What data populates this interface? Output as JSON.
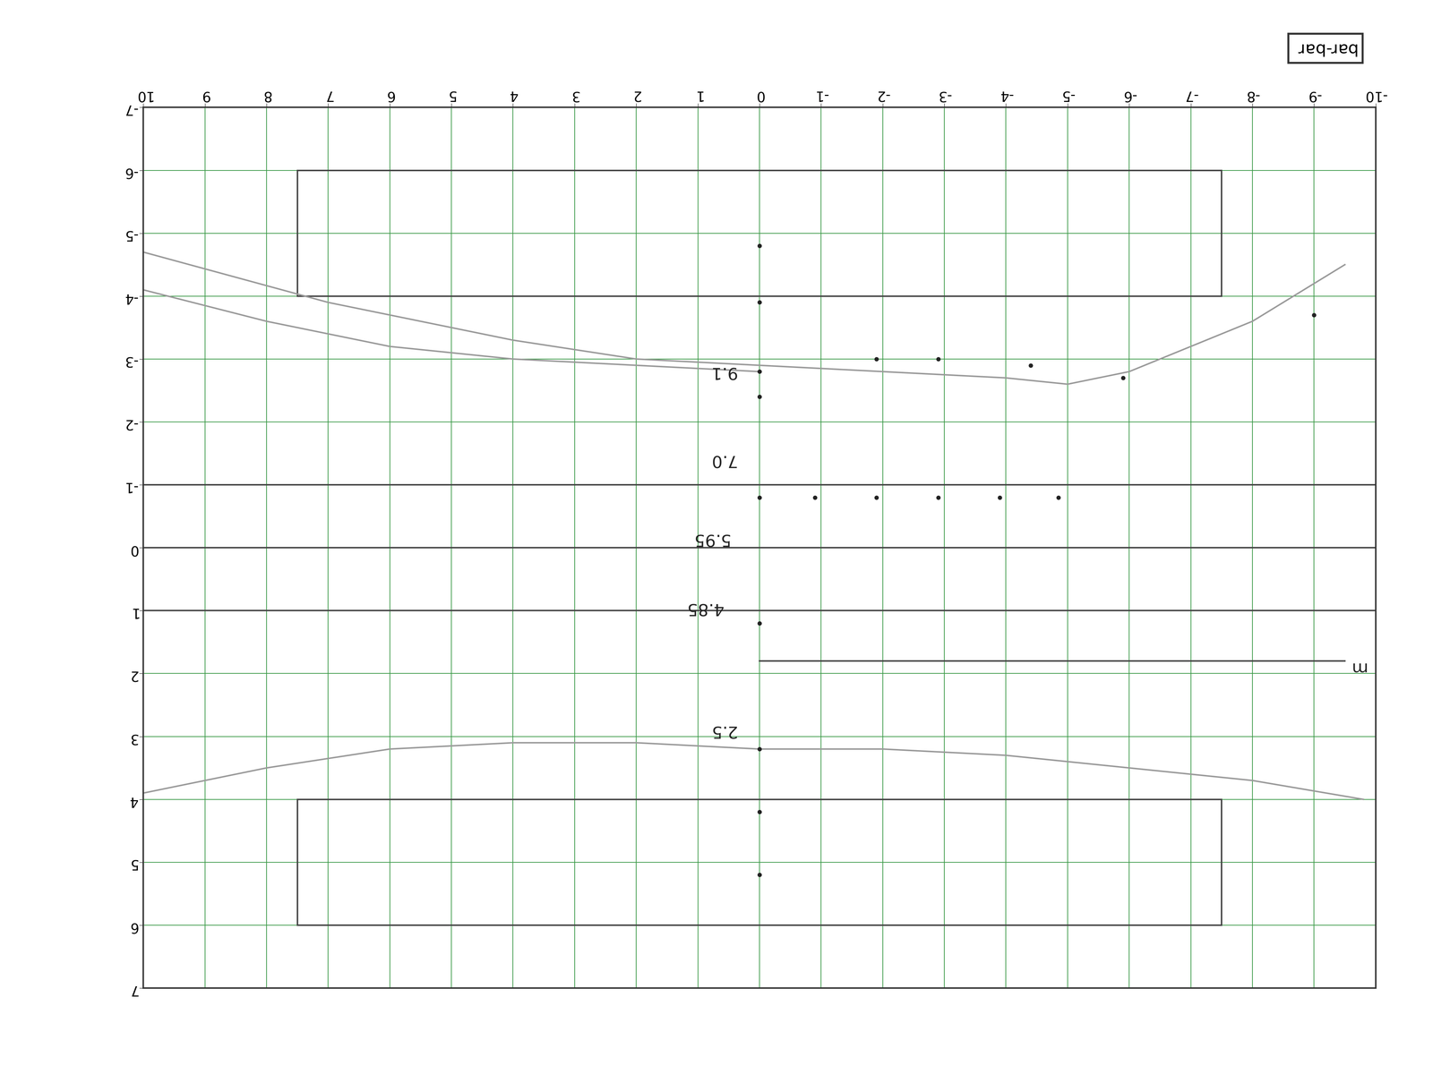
{
  "chart_data": {
    "type": "line",
    "title": "bar-bar",
    "xlim": [
      -10,
      10
    ],
    "ylim": [
      -7,
      7
    ],
    "xticks": [
      -10,
      -9,
      -8,
      -7,
      -6,
      -5,
      -4,
      -3,
      -2,
      -1,
      0,
      1,
      2,
      3,
      4,
      5,
      6,
      7,
      8,
      9,
      10
    ],
    "yticks": [
      -7,
      -6,
      -5,
      -4,
      -3,
      -2,
      -1,
      0,
      1,
      2,
      3,
      4,
      5,
      6,
      7
    ],
    "grid": true,
    "color": "#3c9a48",
    "series": [
      {
        "x": [
          10,
          7,
          4,
          2,
          0,
          -2,
          -4,
          -5,
          -6,
          -8,
          -9.5
        ],
        "values": [
          -4.7,
          -3.9,
          -3.3,
          -3.0,
          -2.9,
          -2.8,
          -2.7,
          -2.6,
          -2.8,
          -3.6,
          -4.5
        ],
        "color": "#9a9a9a"
      },
      {
        "x": [
          10,
          8,
          6,
          4,
          2,
          0
        ],
        "values": [
          -4.1,
          -3.6,
          -3.2,
          -3.0,
          -2.9,
          -2.8
        ],
        "color": "#9a9a9a"
      },
      {
        "x": [
          10,
          8,
          6,
          4,
          2,
          0,
          -2,
          -4,
          -6,
          -8,
          -9.8
        ],
        "values": [
          3.9,
          3.5,
          3.2,
          3.1,
          3.1,
          3.2,
          3.2,
          3.3,
          3.5,
          3.7,
          4.0
        ],
        "color": "#9a9a9a"
      },
      {
        "x": [
          10,
          -10
        ],
        "values": [
          -1,
          -1
        ],
        "color": "#444444"
      },
      {
        "x": [
          10,
          -10
        ],
        "values": [
          0,
          0
        ],
        "color": "#444444"
      },
      {
        "x": [
          10,
          -10
        ],
        "values": [
          1,
          1
        ],
        "color": "#444444"
      },
      {
        "x": [
          0,
          -9.5
        ],
        "values": [
          1.8,
          1.8
        ],
        "color": "#444444"
      }
    ],
    "points": {
      "x": [
        0,
        -0.9,
        -1.9,
        -2.9,
        -3.9,
        -4.85,
        0,
        0,
        -1.9,
        -2.9,
        -4.4,
        -5.9,
        -9.0,
        0,
        0,
        0,
        0,
        0,
        0
      ],
      "y": [
        -0.8,
        -0.8,
        -0.8,
        -0.8,
        -0.8,
        -0.8,
        -4.8,
        -3.9,
        -3.0,
        -3.0,
        -2.9,
        -2.7,
        -3.7,
        -2.8,
        -2.4,
        1.2,
        3.2,
        4.2,
        5.2
      ],
      "color": "#222222"
    },
    "magnets": [
      {
        "x": [
          -7.5,
          7.5
        ],
        "y": [
          -6,
          -4
        ]
      },
      {
        "x": [
          -7.5,
          7.5
        ],
        "y": [
          4,
          6
        ]
      }
    ],
    "annotations": [
      {
        "text": "9.1",
        "x": 0.6,
        "y": -2.8
      },
      {
        "text": "7.0",
        "x": 0.6,
        "y": -1.4
      },
      {
        "text": "5.95",
        "x": 0.8,
        "y": -0.15
      },
      {
        "text": "4.85",
        "x": 0.9,
        "y": 0.95
      },
      {
        "text": "2.5",
        "x": 0.6,
        "y": 2.9
      },
      {
        "text": "m",
        "x": -9.7,
        "y": 1.9
      }
    ]
  }
}
